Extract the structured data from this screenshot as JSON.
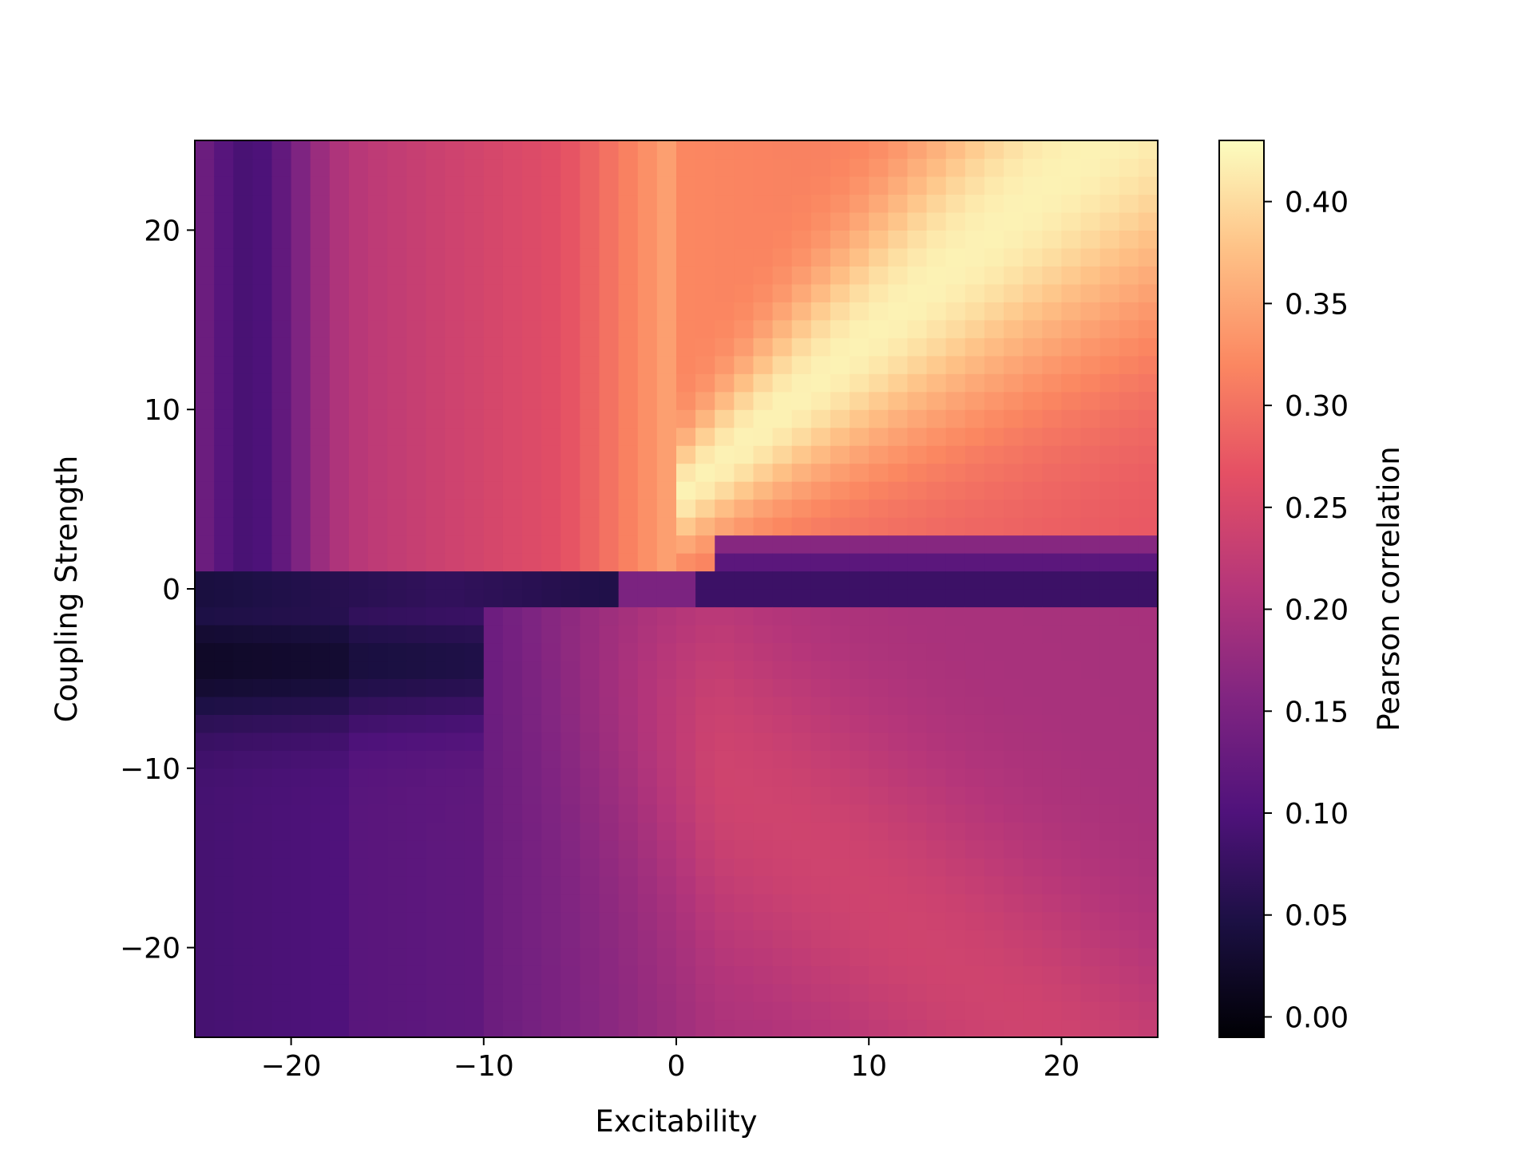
{
  "chart_data": {
    "type": "heatmap",
    "title": "",
    "xlabel": "Excitability",
    "ylabel": "Coupling Strength",
    "xlim": [
      -25,
      25
    ],
    "ylim": [
      -25,
      25
    ],
    "grid_size": [
      50,
      50
    ],
    "xticks": [
      {
        "value": -20,
        "label": "−20"
      },
      {
        "value": -10,
        "label": "−10"
      },
      {
        "value": 0,
        "label": "0"
      },
      {
        "value": 10,
        "label": "10"
      },
      {
        "value": 20,
        "label": "20"
      }
    ],
    "yticks": [
      {
        "value": -20,
        "label": "−20"
      },
      {
        "value": -10,
        "label": "−10"
      },
      {
        "value": 0,
        "label": "0"
      },
      {
        "value": 10,
        "label": "10"
      },
      {
        "value": 20,
        "label": "20"
      }
    ],
    "colormap": "magma",
    "colorbar": {
      "label": "Pearson correlation",
      "range": [
        -0.01,
        0.43
      ],
      "ticks": [
        {
          "value": 0.0,
          "label": "0.00"
        },
        {
          "value": 0.05,
          "label": "0.05"
        },
        {
          "value": 0.1,
          "label": "0.10"
        },
        {
          "value": 0.15,
          "label": "0.15"
        },
        {
          "value": 0.2,
          "label": "0.20"
        },
        {
          "value": 0.25,
          "label": "0.25"
        },
        {
          "value": 0.3,
          "label": "0.30"
        },
        {
          "value": 0.35,
          "label": "0.35"
        },
        {
          "value": 0.4,
          "label": "0.40"
        }
      ]
    },
    "value_description": "Pearson correlation by Excitability (x) and Coupling Strength (y); regions estimated from image",
    "regions": {
      "upper_right_peak": 0.42,
      "upper_left": 0.2,
      "lower_right": 0.22,
      "lower_left_trough": 0.03,
      "zero_coupling_band_right": 0.09,
      "zero_coupling_band_left": 0.03
    }
  }
}
